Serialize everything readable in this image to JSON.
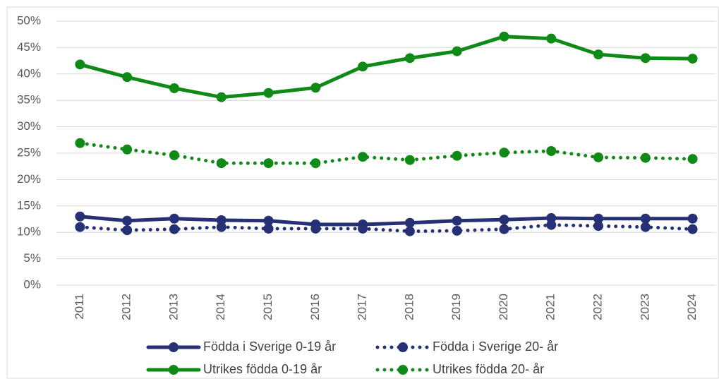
{
  "chart_data": {
    "type": "line",
    "categories": [
      "2011",
      "2012",
      "2013",
      "2014",
      "2015",
      "2016",
      "2017",
      "2018",
      "2019",
      "2020",
      "2021",
      "2022",
      "2023",
      "2024"
    ],
    "series": [
      {
        "name": "Födda i Sverige 0-19 år",
        "color": "#253075",
        "style": "solid",
        "values": [
          13.0,
          12.2,
          12.6,
          12.3,
          12.2,
          11.5,
          11.5,
          11.8,
          12.2,
          12.4,
          12.7,
          12.6,
          12.6,
          12.6
        ]
      },
      {
        "name": "Födda i Sverige 20- år",
        "color": "#253075",
        "style": "dotted",
        "values": [
          11.0,
          10.4,
          10.6,
          11.0,
          10.7,
          10.7,
          10.7,
          10.2,
          10.3,
          10.6,
          11.4,
          11.2,
          11.0,
          10.6
        ]
      },
      {
        "name": "Utrikes födda 0-19 år",
        "color": "#0f8a16",
        "style": "solid",
        "values": [
          41.8,
          39.4,
          37.3,
          35.6,
          36.4,
          37.4,
          41.4,
          43.0,
          44.3,
          47.1,
          46.7,
          43.7,
          43.0,
          42.9
        ]
      },
      {
        "name": "Utrikes födda 20- år",
        "color": "#0f8a16",
        "style": "dotted",
        "values": [
          26.9,
          25.7,
          24.6,
          23.1,
          23.1,
          23.1,
          24.3,
          23.7,
          24.5,
          25.1,
          25.4,
          24.2,
          24.1,
          23.9
        ]
      }
    ],
    "ylim": [
      0,
      50
    ],
    "yticks": [
      {
        "value": 0,
        "label": "0%"
      },
      {
        "value": 5,
        "label": "5%"
      },
      {
        "value": 10,
        "label": "10%"
      },
      {
        "value": 15,
        "label": "15%"
      },
      {
        "value": 20,
        "label": "20%"
      },
      {
        "value": 25,
        "label": "25%"
      },
      {
        "value": 30,
        "label": "30%"
      },
      {
        "value": 35,
        "label": "35%"
      },
      {
        "value": 40,
        "label": "40%"
      },
      {
        "value": 45,
        "label": "45%"
      },
      {
        "value": 50,
        "label": "50%"
      }
    ],
    "grid": true,
    "legend": "bottom"
  }
}
